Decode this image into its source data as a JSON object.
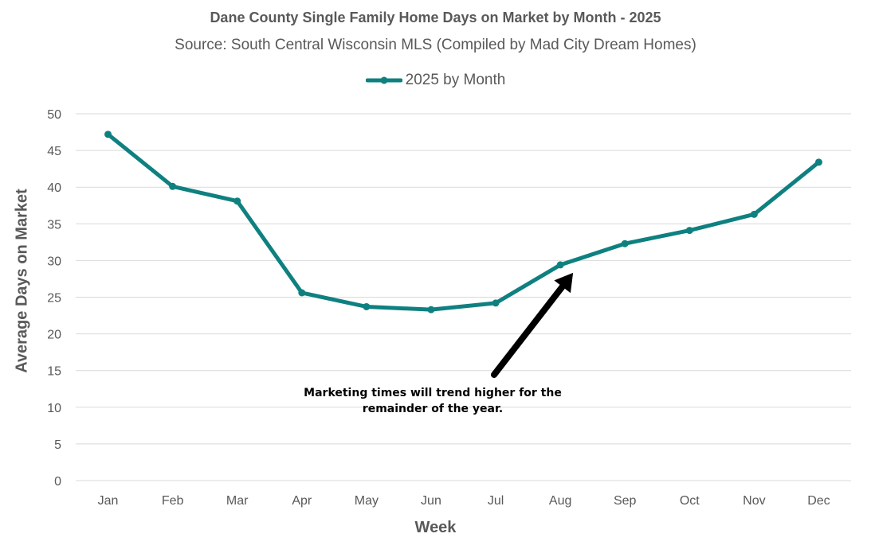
{
  "chart_data": {
    "type": "line",
    "title": "Dane County Single Family Home Days on Market by Month - 2025",
    "subtitle": "Source: South Central Wisconsin MLS (Compiled by Mad City Dream Homes)",
    "xlabel": "Week",
    "ylabel": "Average Days on Market",
    "ylim": [
      0,
      50
    ],
    "yticks": [
      0,
      5,
      10,
      15,
      20,
      25,
      30,
      35,
      40,
      45,
      50
    ],
    "grid": true,
    "legend": "top-center",
    "categories": [
      "Jan",
      "Feb",
      "Mar",
      "Apr",
      "May",
      "Jun",
      "Jul",
      "Aug",
      "Sep",
      "Oct",
      "Nov",
      "Dec"
    ],
    "series": [
      {
        "name": "2025 by Month",
        "color": "#0f8080",
        "values": [
          47.2,
          40.1,
          38.1,
          25.6,
          23.7,
          23.3,
          24.2,
          29.4,
          32.3,
          34.1,
          36.3,
          43.4
        ]
      }
    ],
    "annotations": [
      {
        "lines": [
          "Marketing times will trend higher for the",
          "remainder of the year."
        ],
        "arrow_to": {
          "category": "Aug",
          "value": 29.4
        }
      }
    ]
  }
}
